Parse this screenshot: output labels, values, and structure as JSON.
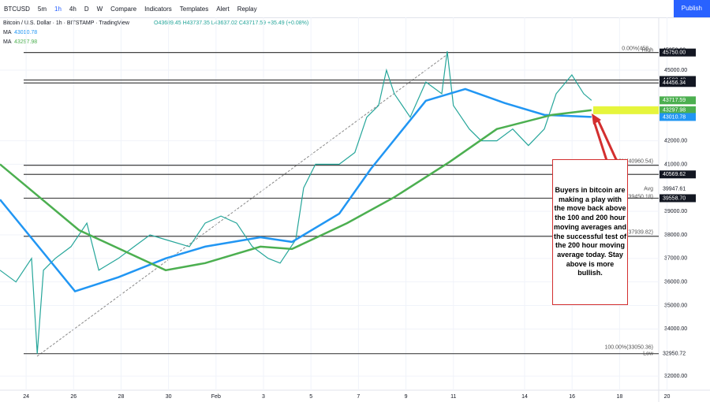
{
  "toolbar": {
    "symbol": "BTCUSD",
    "intervals": [
      "5m",
      "1h",
      "4h",
      "D",
      "W"
    ],
    "buttons": [
      "Compare",
      "Indicators",
      "Templates",
      "Alert",
      "Replay"
    ],
    "market": "S&P",
    "publish": "Publish"
  },
  "chart_data": {
    "type": "line",
    "legend_title": "Bitcoin / U.S. Dollar · 1h · BITSTAMP · TradingView",
    "ohlc": "O43689.45 H43737.35 L43637.02 C43717.59 +35.49 (+0.08%)",
    "xlim": [
      -1.1,
      26.65
    ],
    "ylim": [
      31400,
      46140
    ],
    "xticks": [
      {
        "value": 0,
        "label": "24"
      },
      {
        "value": 2,
        "label": "26"
      },
      {
        "value": 4,
        "label": "28"
      },
      {
        "value": 6,
        "label": "30"
      },
      {
        "value": 8,
        "label": "Feb"
      },
      {
        "value": 10,
        "label": "3"
      },
      {
        "value": 12,
        "label": "5"
      },
      {
        "value": 14,
        "label": "7"
      },
      {
        "value": 16,
        "label": "9"
      },
      {
        "value": 18,
        "label": "11"
      },
      {
        "value": 21,
        "label": "14"
      },
      {
        "value": 23,
        "label": "16"
      },
      {
        "value": 25,
        "label": "18"
      },
      {
        "value": 27,
        "label": "20"
      }
    ],
    "yticks": [
      {
        "value": 32000,
        "label": "32000.00"
      },
      {
        "value": 34000,
        "label": "34000.00"
      },
      {
        "value": 35000,
        "label": "35000.00"
      },
      {
        "value": 36000,
        "label": "36000.00"
      },
      {
        "value": 37000,
        "label": "37000.00"
      },
      {
        "value": 38000,
        "label": "38000.00"
      },
      {
        "value": 39000,
        "label": "39000.00"
      },
      {
        "value": 41000,
        "label": "41000.00"
      },
      {
        "value": 42000,
        "label": "42000.00"
      },
      {
        "value": 45000,
        "label": "45000.00"
      }
    ],
    "series": [
      {
        "name": "BTCUSD",
        "color": "#26a69a",
        "x": [
          -1.1,
          -0.43,
          0.23,
          0.47,
          0.73,
          1.23,
          1.89,
          2.56,
          3.06,
          3.89,
          4.55,
          5.22,
          5.88,
          6.88,
          7.54,
          8.21,
          8.87,
          9.53,
          10.2,
          10.7,
          11.36,
          11.69,
          12.19,
          13.19,
          13.85,
          14.35,
          14.85,
          15.18,
          15.51,
          16.18,
          16.84,
          17.51,
          17.74,
          18.0,
          18.67,
          19.17,
          19.83,
          20.5,
          21.16,
          21.83,
          22.33,
          22.99,
          23.49,
          23.82
        ],
        "values": [
          36500,
          36000,
          37000,
          32950,
          36500,
          37000,
          37500,
          38500,
          36500,
          37000,
          37500,
          38000,
          37800,
          37500,
          38500,
          38800,
          38500,
          37500,
          37000,
          36800,
          37800,
          40000,
          41000,
          41000,
          41500,
          43000,
          43500,
          45000,
          44000,
          43000,
          44500,
          44000,
          45800,
          43500,
          42500,
          42000,
          42000,
          42500,
          41800,
          42500,
          44000,
          44800,
          44000,
          43718
        ]
      },
      {
        "name": "MA",
        "color": "#2196f3",
        "label": "43010.78",
        "x": [
          -1.1,
          2.06,
          3.89,
          5.88,
          7.54,
          9.87,
          11.2,
          13.19,
          14.52,
          16.84,
          18.5,
          20.17,
          21.83,
          23.82
        ],
        "values": [
          39500,
          35600,
          36200,
          37000,
          37500,
          37900,
          37700,
          38900,
          40800,
          43700,
          44200,
          43600,
          43100,
          43011
        ]
      },
      {
        "name": "MA",
        "color": "#4caf50",
        "label": "43297.98",
        "x": [
          -1.1,
          2.23,
          5.88,
          7.54,
          9.87,
          11.2,
          13.52,
          15.51,
          17.84,
          19.83,
          22.16,
          23.82
        ],
        "values": [
          41000,
          38200,
          36500,
          36800,
          37500,
          37400,
          38500,
          39600,
          41100,
          42500,
          43100,
          43298
        ]
      }
    ],
    "levels": [
      45750,
      44582.48,
      44456.34,
      40960.54,
      40569.62,
      39558.7,
      37939.82,
      32950.72
    ],
    "fib_labels": [
      {
        "value": 45750,
        "label": "0.00%(458..."
      },
      {
        "value": 40960.54,
        "label": ".20%(40960.54)"
      },
      {
        "value": 39450.18,
        "label": ".00%(39450.18)"
      },
      {
        "value": 37939.82,
        "label": ".80%(37939.82)"
      },
      {
        "value": 33050.36,
        "label": "100.00%(33050.36)"
      }
    ],
    "price_labels": [
      {
        "value": 45850,
        "label": "45850.00",
        "tag": "High",
        "color": "#ffffff"
      },
      {
        "value": 45750,
        "label": "45750.00",
        "color": "#131722"
      },
      {
        "value": 44582.48,
        "label": "44582.48",
        "color": "#131722"
      },
      {
        "value": 44456.34,
        "label": "44456.34",
        "color": "#131722"
      },
      {
        "value": 43717.59,
        "label": "43717.59",
        "tag": "32:11",
        "color": "#4caf50"
      },
      {
        "value": 43297.98,
        "label": "43297.98",
        "color": "#4caf50"
      },
      {
        "value": 43010.78,
        "label": "43010.78",
        "color": "#2196f3"
      },
      {
        "value": 40569.62,
        "label": "40569.62",
        "color": "#131722"
      },
      {
        "value": 39947.61,
        "label": "39947.61",
        "tag": "Avg",
        "color": "#ffffff"
      },
      {
        "value": 39558.7,
        "label": "39558.70",
        "color": "#131722"
      },
      {
        "value": 32950.72,
        "label": "32950.72",
        "tag": "Low",
        "color": "#ffffff"
      }
    ],
    "highlight": 43297.98,
    "annotation": "Buyers in bitcoin are making a play with the move back above the 100 and 200 hour moving averages and the successful test of the 200 hour moving average today.  Stay above is more bullish."
  }
}
